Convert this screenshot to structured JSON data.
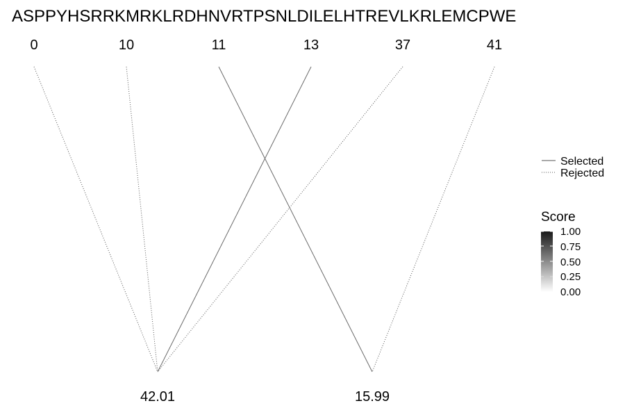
{
  "sequence": "ASPPYHSRRKMRKLRDHNVRTPSNLDILELHTREVLKRLEMCPWE",
  "top_nodes": [
    "0",
    "10",
    "11",
    "13",
    "37",
    "41"
  ],
  "bottom_nodes": [
    "42.01",
    "15.99"
  ],
  "edges": [
    {
      "from": "0",
      "to": "42.01",
      "status": "Rejected"
    },
    {
      "from": "10",
      "to": "42.01",
      "status": "Rejected"
    },
    {
      "from": "13",
      "to": "42.01",
      "status": "Selected"
    },
    {
      "from": "37",
      "to": "42.01",
      "status": "Rejected"
    },
    {
      "from": "11",
      "to": "15.99",
      "status": "Selected"
    },
    {
      "from": "41",
      "to": "15.99",
      "status": "Rejected"
    }
  ],
  "legend": {
    "line_type": [
      {
        "label": "Selected",
        "style": "solid"
      },
      {
        "label": "Rejected",
        "style": "dotted"
      }
    ],
    "score": {
      "title": "Score",
      "ticks": [
        "1.00",
        "0.75",
        "0.50",
        "0.25",
        "0.00"
      ],
      "color_high": "#1a1a1a",
      "color_low": "#ffffff"
    }
  }
}
